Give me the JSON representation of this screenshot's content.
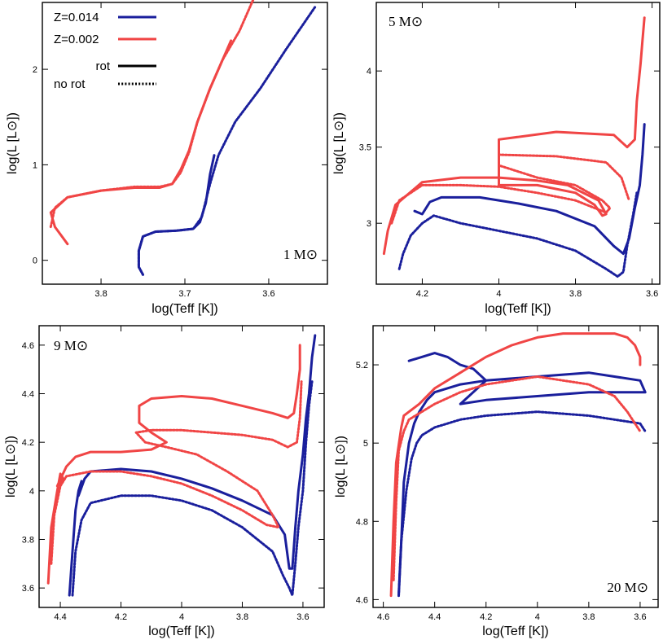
{
  "colors": {
    "z_solar": "#1a1f9c",
    "z_low": "#f04545"
  },
  "legend": {
    "z_solar_label": "Z=0.014",
    "z_low_label": "Z=0.002",
    "rot_label": "rot",
    "norot_label": "no rot"
  },
  "chart_data": [
    {
      "type": "line",
      "panel_label": "1 M⊙",
      "xlabel": "log(Teff [K])",
      "ylabel": "log(L [L⊙])",
      "xlim": [
        3.87,
        3.53
      ],
      "ylim": [
        -0.25,
        2.7
      ],
      "xticks": [
        3.8,
        3.7,
        3.6
      ],
      "yticks": [
        0,
        1,
        2
      ],
      "series": [
        {
          "name": "Z=0.014",
          "style": "rot",
          "color": "z_solar",
          "x": [
            3.75,
            3.755,
            3.755,
            3.75,
            3.735,
            3.71,
            3.69,
            3.682,
            3.675,
            3.67,
            3.665
          ],
          "y": [
            -0.15,
            -0.07,
            0.1,
            0.25,
            0.3,
            0.31,
            0.33,
            0.4,
            0.6,
            0.9,
            1.1
          ]
        },
        {
          "name": "Z=0.014",
          "style": "norot",
          "color": "z_solar",
          "x": [
            3.75,
            3.755,
            3.755,
            3.75,
            3.735,
            3.71,
            3.69,
            3.68,
            3.67,
            3.66,
            3.64,
            3.61,
            3.58,
            3.545
          ],
          "y": [
            -0.15,
            -0.07,
            0.1,
            0.25,
            0.3,
            0.31,
            0.33,
            0.45,
            0.8,
            1.1,
            1.45,
            1.8,
            2.2,
            2.65
          ]
        },
        {
          "name": "Z=0.002",
          "style": "rot",
          "color": "z_low",
          "x": [
            3.84,
            3.855,
            3.86,
            3.84,
            3.8,
            3.76,
            3.73,
            3.715,
            3.705,
            3.695,
            3.685,
            3.67,
            3.655,
            3.645
          ],
          "y": [
            0.17,
            0.35,
            0.5,
            0.66,
            0.73,
            0.76,
            0.76,
            0.8,
            0.95,
            1.15,
            1.45,
            1.8,
            2.1,
            2.3
          ]
        },
        {
          "name": "Z=0.002",
          "style": "norot",
          "color": "z_low",
          "x": [
            3.86,
            3.855,
            3.84,
            3.8,
            3.76,
            3.73,
            3.715,
            3.705,
            3.695,
            3.685,
            3.67,
            3.655,
            3.635,
            3.615
          ],
          "y": [
            0.35,
            0.55,
            0.66,
            0.73,
            0.77,
            0.77,
            0.8,
            0.92,
            1.13,
            1.45,
            1.8,
            2.1,
            2.4,
            2.8
          ]
        }
      ]
    },
    {
      "type": "line",
      "panel_label": "5 M⊙",
      "xlabel": "log(Teff [K])",
      "ylabel": "log(L [L⊙])",
      "xlim": [
        4.32,
        3.58
      ],
      "ylim": [
        2.6,
        4.45
      ],
      "xticks": [
        4.2,
        4.0,
        3.8,
        3.6
      ],
      "yticks": [
        3,
        3.5,
        4
      ],
      "series": [
        {
          "name": "Z=0.014",
          "style": "rot",
          "color": "z_solar",
          "x": [
            4.22,
            4.2,
            4.18,
            4.15,
            4.05,
            3.95,
            3.85,
            3.75,
            3.7,
            3.675,
            3.66,
            3.645,
            3.632,
            3.625,
            3.62
          ],
          "y": [
            3.08,
            3.06,
            3.14,
            3.17,
            3.17,
            3.13,
            3.08,
            2.98,
            2.85,
            2.8,
            2.9,
            3.1,
            3.25,
            3.45,
            3.65
          ]
        },
        {
          "name": "Z=0.014",
          "style": "norot",
          "color": "z_solar",
          "x": [
            4.26,
            4.25,
            4.23,
            4.2,
            4.17,
            4.1,
            4.0,
            3.9,
            3.8,
            3.72,
            3.69,
            3.675,
            3.665,
            3.65,
            3.64
          ],
          "y": [
            2.7,
            2.8,
            2.92,
            3.0,
            3.05,
            3.0,
            2.95,
            2.9,
            2.82,
            2.7,
            2.65,
            2.68,
            2.85,
            3.05,
            3.2
          ]
        },
        {
          "name": "Z=0.002",
          "style": "rot",
          "color": "z_low",
          "x": [
            4.3,
            4.29,
            4.27,
            4.2,
            4.1,
            4.0,
            3.9,
            3.82,
            3.74,
            3.72,
            3.73,
            3.75,
            3.8,
            3.9,
            4.0,
            4.0,
            3.85,
            3.7,
            3.665,
            3.645,
            3.64,
            3.63,
            3.625,
            3.62
          ],
          "y": [
            2.8,
            2.95,
            3.12,
            3.27,
            3.3,
            3.3,
            3.28,
            3.25,
            3.15,
            3.06,
            3.05,
            3.12,
            3.2,
            3.25,
            3.25,
            3.55,
            3.6,
            3.58,
            3.5,
            3.55,
            3.8,
            4.05,
            4.2,
            4.35
          ]
        },
        {
          "name": "Z=0.002",
          "style": "norot",
          "color": "z_low",
          "x": [
            4.28,
            4.26,
            4.2,
            4.1,
            4.0,
            3.9,
            3.8,
            3.72,
            3.71,
            3.73,
            3.8,
            3.9,
            4.0,
            4.0,
            3.85,
            3.72,
            3.68,
            3.66
          ],
          "y": [
            3.0,
            3.15,
            3.25,
            3.25,
            3.24,
            3.2,
            3.15,
            3.07,
            3.1,
            3.15,
            3.25,
            3.3,
            3.38,
            3.45,
            3.44,
            3.4,
            3.3,
            3.15
          ]
        }
      ]
    },
    {
      "type": "line",
      "panel_label": "9 M⊙",
      "xlabel": "log(Teff [K])",
      "ylabel": "log(L [L⊙])",
      "xlim": [
        4.47,
        3.53
      ],
      "ylim": [
        3.52,
        4.68
      ],
      "xticks": [
        4.4,
        4.2,
        4.0,
        3.8,
        3.6
      ],
      "yticks": [
        3.6,
        3.8,
        4.0,
        4.2,
        4.4,
        4.6
      ],
      "series": [
        {
          "name": "Z=0.014",
          "style": "rot",
          "color": "z_solar",
          "x": [
            4.37,
            4.36,
            4.35,
            4.34,
            4.33,
            4.34,
            4.32,
            4.3,
            4.2,
            4.1,
            4.0,
            3.9,
            3.8,
            3.7,
            3.66,
            3.645,
            3.635,
            3.625,
            3.615,
            3.6,
            3.59,
            3.58,
            3.57,
            3.56
          ],
          "y": [
            3.57,
            3.75,
            3.92,
            4.0,
            4.04,
            3.98,
            4.05,
            4.08,
            4.09,
            4.08,
            4.05,
            4.01,
            3.96,
            3.9,
            3.82,
            3.68,
            3.68,
            3.85,
            4.0,
            4.15,
            4.3,
            4.4,
            4.55,
            4.64
          ]
        },
        {
          "name": "Z=0.014",
          "style": "norot",
          "color": "z_solar",
          "x": [
            4.36,
            4.35,
            4.33,
            4.3,
            4.2,
            4.1,
            4.0,
            3.9,
            3.8,
            3.7,
            3.665,
            3.645,
            3.635,
            3.625,
            3.615,
            3.6,
            3.59,
            3.58,
            3.57
          ],
          "y": [
            3.57,
            3.75,
            3.88,
            3.95,
            3.98,
            3.98,
            3.96,
            3.92,
            3.85,
            3.75,
            3.65,
            3.6,
            3.57,
            3.7,
            3.85,
            4.0,
            4.2,
            4.35,
            4.45
          ]
        },
        {
          "name": "Z=0.002",
          "style": "rot",
          "color": "z_low",
          "x": [
            4.44,
            4.43,
            4.41,
            4.4,
            4.39,
            4.41,
            4.38,
            4.35,
            4.3,
            4.2,
            4.1,
            4.05,
            4.1,
            4.14,
            4.14,
            4.1,
            4.0,
            3.9,
            3.8,
            3.7,
            3.65,
            3.63,
            3.62,
            3.61,
            3.61
          ],
          "y": [
            3.62,
            3.85,
            4.0,
            4.07,
            4.05,
            4.02,
            4.1,
            4.14,
            4.16,
            4.16,
            4.17,
            4.2,
            4.24,
            4.28,
            4.35,
            4.38,
            4.39,
            4.38,
            4.35,
            4.32,
            4.3,
            4.32,
            4.4,
            4.5,
            4.6
          ]
        },
        {
          "name": "Z=0.002",
          "style": "norot",
          "color": "z_low",
          "x": [
            4.43,
            4.42,
            4.4,
            4.38,
            4.3,
            4.2,
            4.1,
            4.0,
            3.9,
            3.8,
            3.72,
            3.68,
            3.7,
            3.75,
            3.85,
            3.95,
            4.05,
            4.12,
            4.15,
            4.1,
            4.0,
            3.9,
            3.8,
            3.7,
            3.65,
            3.62,
            3.61,
            3.605
          ],
          "y": [
            3.7,
            3.9,
            4.02,
            4.06,
            4.08,
            4.08,
            4.06,
            4.03,
            3.98,
            3.92,
            3.86,
            3.85,
            3.9,
            4.0,
            4.08,
            4.15,
            4.18,
            4.2,
            4.24,
            4.25,
            4.25,
            4.24,
            4.23,
            4.21,
            4.18,
            4.2,
            4.3,
            4.45
          ]
        }
      ]
    },
    {
      "type": "line",
      "panel_label": "20 M⊙",
      "xlabel": "log(Teff [K])",
      "ylabel": "log(L [L⊙])",
      "xlim": [
        4.64,
        3.53
      ],
      "ylim": [
        4.58,
        5.3
      ],
      "xticks": [
        4.6,
        4.4,
        4.2,
        4.0,
        3.8,
        3.6
      ],
      "yticks": [
        4.6,
        4.8,
        5.0,
        5.2
      ],
      "series": [
        {
          "name": "Z=0.014",
          "style": "rot",
          "color": "z_solar",
          "x": [
            4.54,
            4.53,
            4.52,
            4.5,
            4.48,
            4.46,
            4.44,
            4.43,
            4.4,
            4.3,
            4.2,
            4.0,
            3.8,
            3.7,
            3.6,
            3.58,
            3.6,
            3.7,
            3.8,
            4.0,
            4.2,
            4.3,
            4.2,
            4.25,
            4.3,
            4.35,
            4.4,
            4.45,
            4.5
          ],
          "y": [
            4.61,
            4.75,
            4.9,
            5.0,
            5.05,
            5.08,
            5.1,
            5.11,
            5.13,
            5.15,
            5.16,
            5.17,
            5.18,
            5.17,
            5.16,
            5.13,
            5.13,
            5.13,
            5.13,
            5.12,
            5.11,
            5.1,
            5.16,
            5.19,
            5.2,
            5.22,
            5.23,
            5.22,
            5.21
          ]
        },
        {
          "name": "Z=0.014",
          "style": "norot",
          "color": "z_solar",
          "x": [
            4.54,
            4.53,
            4.51,
            4.49,
            4.47,
            4.45,
            4.4,
            4.3,
            4.2,
            4.0,
            3.8,
            3.7,
            3.6,
            3.58
          ],
          "y": [
            4.61,
            4.75,
            4.88,
            4.96,
            5.0,
            5.02,
            5.04,
            5.06,
            5.07,
            5.08,
            5.07,
            5.06,
            5.05,
            5.03
          ]
        },
        {
          "name": "Z=0.002",
          "style": "rot",
          "color": "z_low",
          "x": [
            4.57,
            4.56,
            4.55,
            4.53,
            4.52,
            4.5,
            4.46,
            4.4,
            4.3,
            4.2,
            4.1,
            4.0,
            3.9,
            3.8,
            3.7,
            3.65,
            3.62,
            3.6,
            3.6
          ],
          "y": [
            4.61,
            4.8,
            4.95,
            5.04,
            5.07,
            5.08,
            5.1,
            5.14,
            5.18,
            5.22,
            5.25,
            5.27,
            5.28,
            5.28,
            5.28,
            5.27,
            5.25,
            5.22,
            5.2
          ]
        },
        {
          "name": "Z=0.002",
          "style": "norot",
          "color": "z_low",
          "x": [
            4.56,
            4.55,
            4.54,
            4.52,
            4.5,
            4.45,
            4.4,
            4.3,
            4.2,
            4.1,
            4.0,
            3.9,
            3.8,
            3.7,
            3.65,
            3.62,
            3.6
          ],
          "y": [
            4.65,
            4.85,
            4.98,
            5.03,
            5.06,
            5.08,
            5.1,
            5.13,
            5.15,
            5.16,
            5.17,
            5.16,
            5.15,
            5.12,
            5.08,
            5.05,
            5.03
          ]
        }
      ]
    }
  ]
}
